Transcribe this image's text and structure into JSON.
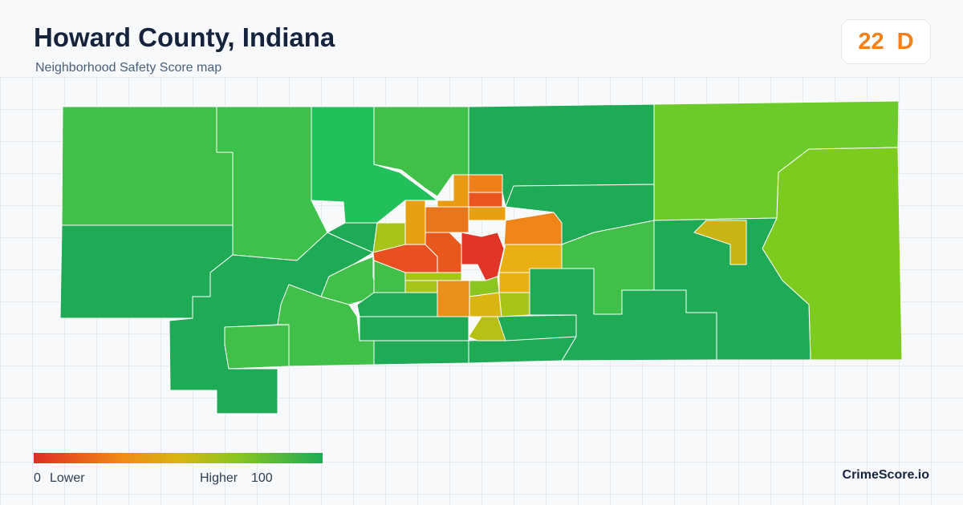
{
  "header": {
    "title": "Howard County, Indiana",
    "subtitle": "Neighborhood Safety Score map"
  },
  "score": {
    "value": 22,
    "grade": "D"
  },
  "legend": {
    "min": 0,
    "min_label": "Lower",
    "max_label": "Higher",
    "max": 100
  },
  "brand": "CrimeScore.io"
}
